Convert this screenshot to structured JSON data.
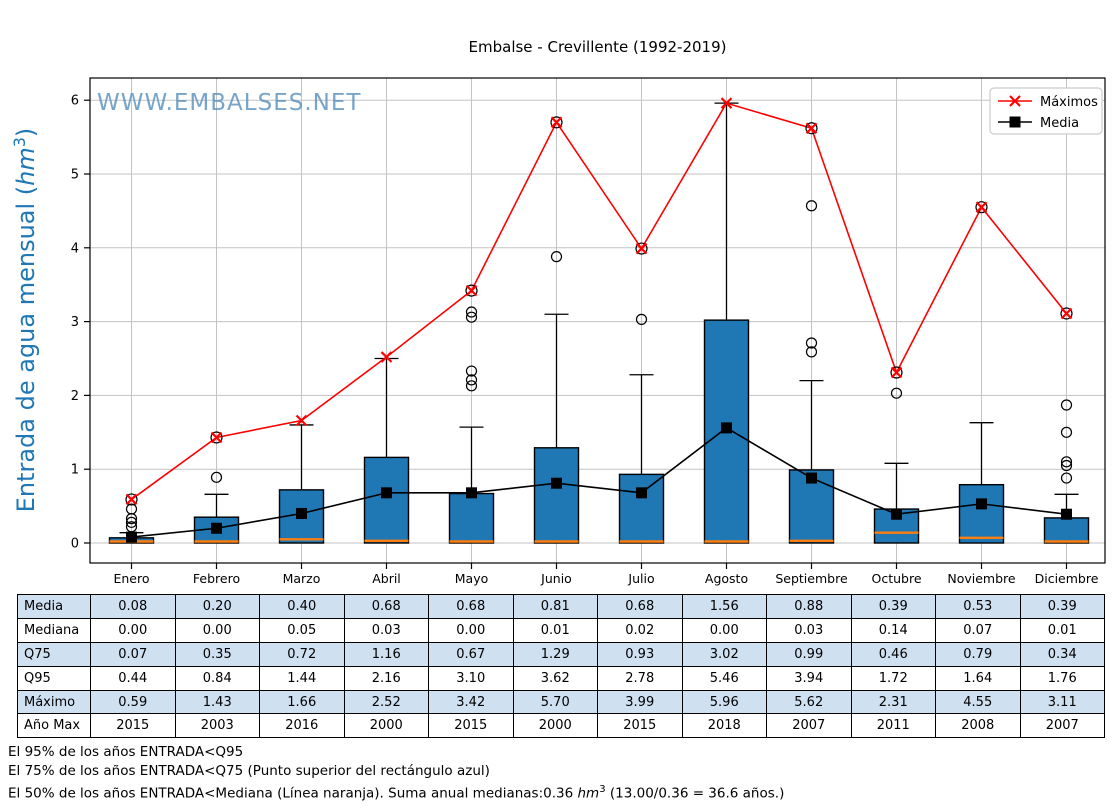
{
  "watermark": "WWW.EMBALSES.NET",
  "legend": {
    "maximos": "Máximos",
    "media": "Media"
  },
  "ylabel_parts": {
    "prefix": "Entrada de agua mensual (",
    "unit": "hm",
    "exp": "3",
    "suffix": ")"
  },
  "chart_data": {
    "type": "boxplot",
    "title": "Embalse - Crevillente (1992-2019)",
    "ylabel": "Entrada de agua mensual (hm3)",
    "ylim": [
      -0.3,
      6.3
    ],
    "yticks": [
      0,
      1,
      2,
      3,
      4,
      5,
      6
    ],
    "grid": true,
    "legend_position": "upper right",
    "categories": [
      "Enero",
      "Febrero",
      "Marzo",
      "Abril",
      "Mayo",
      "Junio",
      "Julio",
      "Agosto",
      "Septiembre",
      "Octubre",
      "Noviembre",
      "Diciembre"
    ],
    "series": [
      {
        "name": "Máximos",
        "color": "#ff0000",
        "marker": "x",
        "values": [
          0.59,
          1.43,
          1.66,
          2.52,
          3.42,
          5.7,
          3.99,
          5.96,
          5.62,
          2.31,
          4.55,
          3.11
        ]
      },
      {
        "name": "Media",
        "color": "#000000",
        "marker": "square",
        "values": [
          0.08,
          0.2,
          0.4,
          0.68,
          0.68,
          0.81,
          0.68,
          1.56,
          0.88,
          0.39,
          0.53,
          0.39
        ]
      }
    ],
    "boxplot": {
      "box_bottom": [
        0,
        0,
        0,
        0,
        0,
        0,
        0,
        0,
        0,
        0,
        0,
        0
      ],
      "mediana": [
        0.0,
        0.0,
        0.05,
        0.03,
        0.0,
        0.01,
        0.02,
        0.0,
        0.03,
        0.14,
        0.07,
        0.01
      ],
      "q75": [
        0.07,
        0.35,
        0.72,
        1.16,
        0.67,
        1.29,
        0.93,
        3.02,
        0.99,
        0.46,
        0.79,
        0.34
      ],
      "q95": [
        0.44,
        0.84,
        1.44,
        2.16,
        3.1,
        3.62,
        2.78,
        5.46,
        3.94,
        1.72,
        1.64,
        1.76
      ],
      "whisker_top": [
        0.14,
        0.66,
        1.6,
        2.5,
        1.57,
        3.1,
        2.28,
        5.96,
        2.2,
        1.08,
        1.63,
        0.66
      ],
      "outliers": [
        [
          0.22,
          0.28,
          0.33,
          0.46
        ],
        [
          0.89
        ],
        [],
        [],
        [
          2.13,
          2.21,
          2.33,
          3.06,
          3.13
        ],
        [
          3.88
        ],
        [
          3.03
        ],
        [],
        [
          2.59,
          2.71,
          4.57
        ],
        [
          2.03
        ],
        [],
        [
          0.88,
          1.05,
          1.1,
          1.5,
          1.87
        ]
      ],
      "max_circle": [
        true,
        true,
        false,
        false,
        true,
        true,
        true,
        false,
        true,
        true,
        true,
        true
      ]
    },
    "ano_max": [
      2015,
      2003,
      2016,
      2000,
      2015,
      2000,
      2015,
      2018,
      2007,
      2011,
      2008,
      2007
    ]
  },
  "table": {
    "row_labels": [
      "Media",
      "Mediana",
      "Q75",
      "Q95",
      "Máximo",
      "Año Max"
    ],
    "rows": [
      [
        "0.08",
        "0.20",
        "0.40",
        "0.68",
        "0.68",
        "0.81",
        "0.68",
        "1.56",
        "0.88",
        "0.39",
        "0.53",
        "0.39"
      ],
      [
        "0.00",
        "0.00",
        "0.05",
        "0.03",
        "0.00",
        "0.01",
        "0.02",
        "0.00",
        "0.03",
        "0.14",
        "0.07",
        "0.01"
      ],
      [
        "0.07",
        "0.35",
        "0.72",
        "1.16",
        "0.67",
        "1.29",
        "0.93",
        "3.02",
        "0.99",
        "0.46",
        "0.79",
        "0.34"
      ],
      [
        "0.44",
        "0.84",
        "1.44",
        "2.16",
        "3.10",
        "3.62",
        "2.78",
        "5.46",
        "3.94",
        "1.72",
        "1.64",
        "1.76"
      ],
      [
        "0.59",
        "1.43",
        "1.66",
        "2.52",
        "3.42",
        "5.70",
        "3.99",
        "5.96",
        "5.62",
        "2.31",
        "4.55",
        "3.11"
      ],
      [
        "2015",
        "2003",
        "2016",
        "2000",
        "2015",
        "2000",
        "2015",
        "2018",
        "2007",
        "2011",
        "2008",
        "2007"
      ]
    ]
  },
  "footer": {
    "line1": "El 95% de los años ENTRADA<Q95",
    "line2": "El 75% de los años ENTRADA<Q75 (Punto superior del rectángulo azul)",
    "line3_prefix": "El 50% de los años ENTRADA<Mediana (Línea naranja). Suma anual medianas:0.36 ",
    "line3_unit": "hm",
    "line3_exp": "3",
    "line3_suffix": " (13.00/0.36 = 36.6 años.)"
  },
  "colors": {
    "box_fill": "#1f77b4",
    "box_edge": "#000000",
    "median_line": "#ff7f0e",
    "max_line": "#ff0000",
    "mean_line": "#000000",
    "ylabel": "#1f77b4",
    "watermark": "#6095c0",
    "grid": "#c3c3c3",
    "table_row_blue": "#cfe0f1",
    "legend_border": "#cccccc"
  }
}
